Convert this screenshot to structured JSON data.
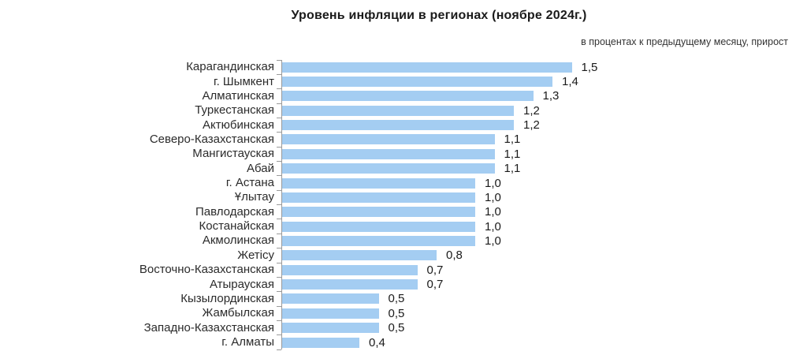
{
  "chart_data": {
    "type": "bar",
    "orientation": "horizontal",
    "title": "Уровень инфляции в регионах (ноябре 2024г.)",
    "subtitle": "в процентах к предыдущему месяцу, прирост",
    "categories": [
      "Карагандинская",
      "г. Шымкент",
      "Алматинская",
      "Туркестанская",
      "Актюбинская",
      "Северо-Казахстанская",
      "Мангистауская",
      "Абай",
      "г. Астана",
      "Ұлытау",
      "Павлодарская",
      "Костанайская",
      "Акмолинская",
      "Жетісу",
      "Восточно-Казахстанская",
      "Атырауская",
      "Кызылординская",
      "Жамбылская",
      "Западно-Казахстанская",
      "г. Алматы"
    ],
    "values": [
      1.5,
      1.4,
      1.3,
      1.2,
      1.2,
      1.1,
      1.1,
      1.1,
      1.0,
      1.0,
      1.0,
      1.0,
      1.0,
      0.8,
      0.7,
      0.7,
      0.5,
      0.5,
      0.5,
      0.4
    ],
    "value_labels": [
      "1,5",
      "1,4",
      "1,3",
      "1,2",
      "1,2",
      "1,1",
      "1,1",
      "1,1",
      "1,0",
      "1,0",
      "1,0",
      "1,0",
      "1,0",
      "0,8",
      "0,7",
      "0,7",
      "0,5",
      "0,5",
      "0,5",
      "0,4"
    ],
    "xlim": [
      0,
      1.5
    ],
    "grid": false,
    "legend": "none",
    "sort": "descending",
    "bar_color": "#A4CDF2",
    "axis_color": "#9a9a9a",
    "label_color": "#2b2b2b",
    "value_label_position": "outside-end"
  }
}
